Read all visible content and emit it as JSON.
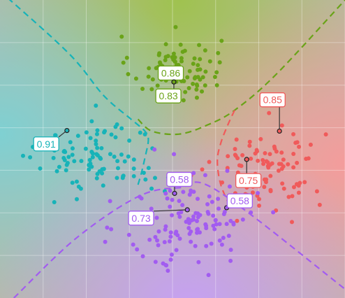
{
  "chart_data": {
    "type": "scatter",
    "title": "",
    "xlabel": "",
    "ylabel": "",
    "xlim": [
      0,
      100
    ],
    "ylim": [
      0,
      100
    ],
    "grid": true,
    "legend": "none",
    "colors": {
      "green": "#6aa318",
      "red": "#f05a5a",
      "teal": "#17b3b8",
      "purple": "#a25cf0",
      "bg_green": "#a8c763",
      "bg_red": "#f2a0a0",
      "bg_teal": "#86d1cf",
      "bg_purple": "#c9a4f3",
      "bg_center": "#b4b49a"
    },
    "clusters": [
      {
        "key": "green",
        "color": "#6aa318",
        "center": [
          51,
          77
        ],
        "spread": [
          6.5,
          5.5
        ],
        "count": 85
      },
      {
        "key": "red",
        "color": "#f05a5a",
        "center": [
          78,
          44
        ],
        "spread": [
          8,
          7
        ],
        "count": 95
      },
      {
        "key": "teal",
        "color": "#17b3b8",
        "center": [
          29,
          47
        ],
        "spread": [
          9,
          6.5
        ],
        "count": 95
      },
      {
        "key": "purple",
        "color": "#a25cf0",
        "center": [
          55,
          26
        ],
        "spread": [
          9.5,
          8.5
        ],
        "count": 120
      }
    ],
    "boundaries": [
      {
        "color": "#17b3b8",
        "points": [
          [
            0,
            103
          ],
          [
            20,
            82
          ],
          [
            30,
            68
          ],
          [
            38,
            60
          ],
          [
            42,
            56
          ],
          [
            43,
            53
          ],
          [
            42,
            47
          ],
          [
            41,
            42
          ],
          [
            40,
            38
          ]
        ]
      },
      {
        "color": "#6aa318",
        "points": [
          [
            40,
            60
          ],
          [
            44,
            56
          ],
          [
            52,
            55
          ],
          [
            60,
            58
          ],
          [
            68,
            63
          ],
          [
            80,
            75
          ],
          [
            100,
            100
          ]
        ]
      },
      {
        "color": "#f05a5a",
        "points": [
          [
            68,
            63
          ],
          [
            66,
            58
          ],
          [
            64,
            52
          ],
          [
            63,
            46
          ],
          [
            64,
            38
          ],
          [
            67,
            30
          ]
        ]
      },
      {
        "color": "#a25cf0",
        "points": [
          [
            4,
            0
          ],
          [
            22,
            20
          ],
          [
            40,
            34
          ],
          [
            52,
            37
          ],
          [
            63,
            36
          ],
          [
            100,
            3
          ]
        ]
      }
    ],
    "annotations": [
      {
        "text": "0.86",
        "point": [
          50.4,
          72.5
        ],
        "label": [
          49.5,
          75.5
        ],
        "color": "#6aa318"
      },
      {
        "text": "0.83",
        "point": [
          50.4,
          72.5
        ],
        "label": [
          48.8,
          67.8
        ],
        "color": "#6aa318"
      },
      {
        "text": "0.85",
        "point": [
          81.0,
          56.0
        ],
        "label": [
          79.0,
          66.5
        ],
        "color": "#f05a5a"
      },
      {
        "text": "0.91",
        "point": [
          19.4,
          56.2
        ],
        "label": [
          13.4,
          51.7
        ],
        "color": "#17b3b8"
      },
      {
        "text": "0.58",
        "point": [
          50.6,
          35.1
        ],
        "label": [
          52.0,
          39.8
        ],
        "color": "#a25cf0"
      },
      {
        "text": "0.75",
        "point": [
          71.5,
          46.5
        ],
        "label": [
          72.0,
          39.4
        ],
        "color": "#f05a5a"
      },
      {
        "text": "0.58",
        "point": [
          65.7,
          30.3
        ],
        "label": [
          69.5,
          32.6
        ],
        "color": "#a25cf0"
      },
      {
        "text": "0.73",
        "point": [
          54.3,
          29.6
        ],
        "label": [
          40.9,
          26.8
        ],
        "color": "#a25cf0"
      }
    ]
  }
}
